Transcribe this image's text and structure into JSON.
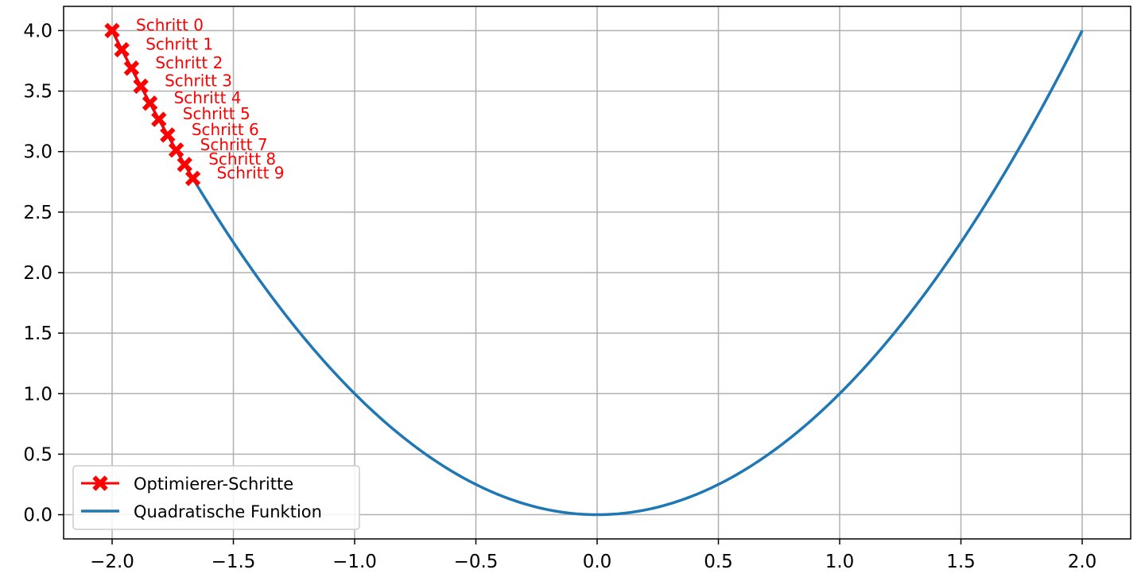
{
  "chart_data": {
    "type": "line",
    "xlim": [
      -2.2,
      2.2
    ],
    "ylim": [
      -0.2,
      4.2
    ],
    "grid": true,
    "xticks": [
      -2.0,
      -1.5,
      -1.0,
      -0.5,
      0.0,
      0.5,
      1.0,
      1.5,
      2.0
    ],
    "yticks": [
      0.0,
      0.5,
      1.0,
      1.5,
      2.0,
      2.5,
      3.0,
      3.5,
      4.0
    ],
    "xtick_labels": [
      "−2.0",
      "−1.5",
      "−1.0",
      "−0.5",
      "0.0",
      "0.5",
      "1.0",
      "1.5",
      "2.0"
    ],
    "ytick_labels": [
      "0.0",
      "0.5",
      "1.0",
      "1.5",
      "2.0",
      "2.5",
      "3.0",
      "3.5",
      "4.0"
    ],
    "legend_position": "lower-left",
    "series": [
      {
        "name": "Optimierer-Schritte",
        "color": "#ff0000",
        "marker": "X",
        "x": [
          -2.0,
          -1.96,
          -1.92,
          -1.8816,
          -1.844,
          -1.8072,
          -1.771,
          -1.7356,
          -1.7009,
          -1.6669
        ],
        "y": [
          4.0,
          3.8416,
          3.6893,
          3.5404,
          3.4003,
          3.266,
          3.1365,
          3.0123,
          2.8931,
          2.7786
        ],
        "labels": [
          "Schritt 0",
          "Schritt 1",
          "Schritt 2",
          "Schritt 3",
          "Schritt 4",
          "Schritt 5",
          "Schritt 6",
          "Schritt 7",
          "Schritt 8",
          "Schritt 9"
        ]
      },
      {
        "name": "Quadratische Funktion",
        "color": "#1f77b4",
        "function": "x^2",
        "x_range": [
          -2.0,
          2.0
        ]
      }
    ]
  }
}
